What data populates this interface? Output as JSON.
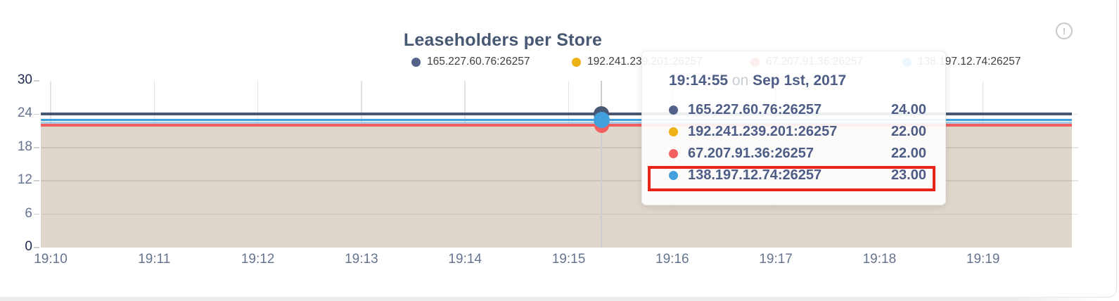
{
  "card": {
    "title": "Leaseholders per Store",
    "info_icon_glyph": "!"
  },
  "legend": {
    "items": [
      {
        "label": "165.227.60.76:26257",
        "color": "#52628a",
        "truncated": false
      },
      {
        "label": "192.241.239.201:26257",
        "color": "#edb213",
        "truncated": true
      },
      {
        "label": "67.207.91.36:26257",
        "color": "#f15f5f",
        "truncated": false
      },
      {
        "label": "138.197.12.74:26257",
        "color": "#42a1dc",
        "truncated": false
      }
    ]
  },
  "tooltip": {
    "time": "19:14:55",
    "on_word": "on",
    "date": "Sep 1st, 2017",
    "rows": [
      {
        "label": "165.227.60.76:26257",
        "value": "24.00",
        "color": "#52628a"
      },
      {
        "label": "192.241.239.201:26257",
        "value": "22.00",
        "color": "#edb213"
      },
      {
        "label": "67.207.91.36:26257",
        "value": "22.00",
        "color": "#f15f5f"
      },
      {
        "label": "138.197.12.74:26257",
        "value": "23.00",
        "color": "#42a1dc"
      }
    ],
    "highlighted_row_index": 3
  },
  "chart_data": {
    "type": "area",
    "title": "Leaseholders per Store",
    "xlabel": "",
    "ylabel": "",
    "x_ticks": [
      "19:10",
      "19:11",
      "19:12",
      "19:13",
      "19:14",
      "19:15",
      "19:16",
      "19:17",
      "19:18",
      "19:19"
    ],
    "y_ticks": [
      0,
      6,
      12,
      18,
      24,
      30
    ],
    "ylim": [
      0,
      30
    ],
    "grid": true,
    "legend_position": "top",
    "series": [
      {
        "name": "165.227.60.76:26257",
        "color": "#475872",
        "value": 24
      },
      {
        "name": "192.241.239.201:26257",
        "color": "#edb213",
        "value": 22
      },
      {
        "name": "67.207.91.36:26257",
        "color": "#f15f5f",
        "value": 22
      },
      {
        "name": "138.197.12.74:26257",
        "color": "#42a1dc",
        "value": 23
      }
    ],
    "hover_point": {
      "time": "19:14:55",
      "date": "Sep 1st, 2017",
      "values": {
        "165.227.60.76:26257": 24,
        "192.241.239.201:26257": 22,
        "67.207.91.36:26257": 22,
        "138.197.12.74:26257": 23
      }
    },
    "fill_color": "#ded7cc",
    "blue_underline_color": "#a9cbe6"
  }
}
